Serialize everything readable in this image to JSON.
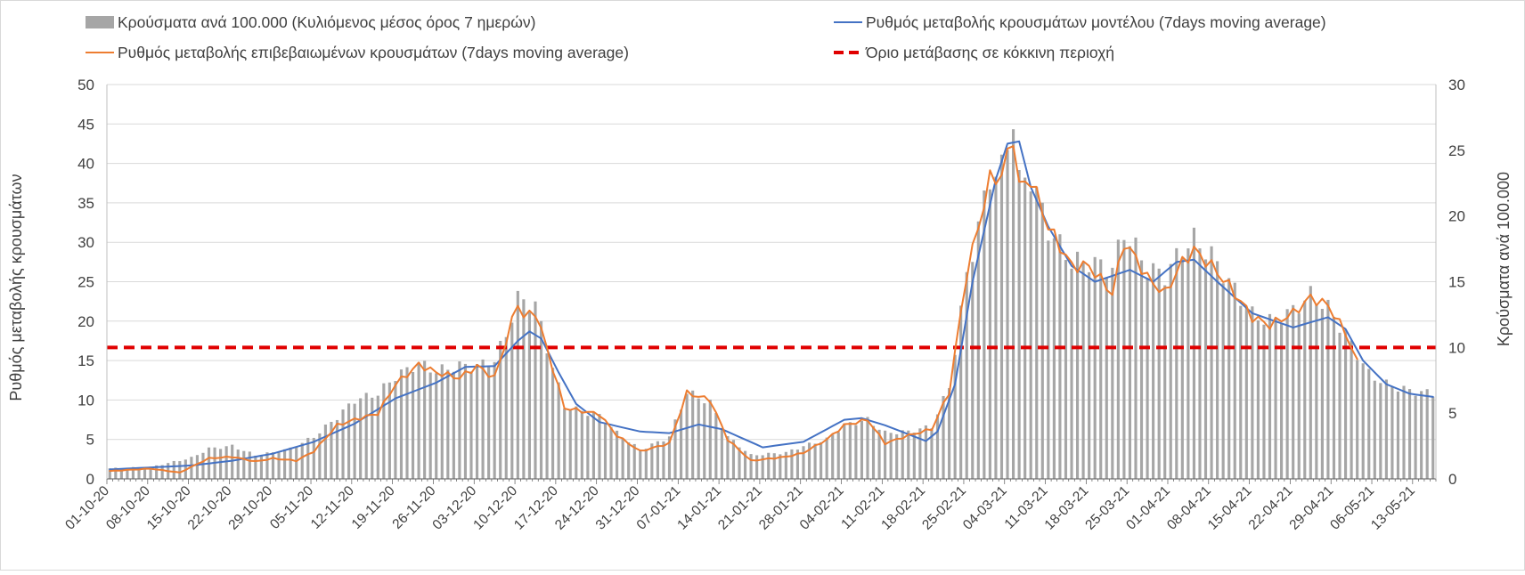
{
  "chart_data": {
    "type": "bar",
    "legend": [
      {
        "key": "cases",
        "label": "Κρούσματα ανά 100.000 (Κυλιόμενος μέσος όρος 7 ημερών)",
        "color": "#a6a6a6",
        "marker": "bar"
      },
      {
        "key": "model",
        "label": "Ρυθμός μεταβολής κρουσμάτων μοντέλου (7days moving average)",
        "color": "#4472c4",
        "marker": "line"
      },
      {
        "key": "confirmed",
        "label": "Ρυθμός μεταβολής επιβεβαιωμένων κρουσμάτων (7days moving average)",
        "color": "#ed7d31",
        "marker": "line"
      },
      {
        "key": "threshold",
        "label": "Όριο μετάβασης σε κόκκινη περιοχή",
        "color": "#e00000",
        "marker": "dash"
      }
    ],
    "left_axis": {
      "label": "Ρυθμός μεταβολής κρουσμάτων",
      "min": 0,
      "max": 50,
      "step": 5,
      "ticks": [
        "0",
        "5",
        "10",
        "15",
        "20",
        "25",
        "30",
        "35",
        "40",
        "45",
        "50"
      ]
    },
    "right_axis": {
      "label": "Κρούσματα ανά 100.000",
      "min": 0,
      "max": 30,
      "step": 5,
      "ticks": [
        "0",
        "5",
        "10",
        "15",
        "20",
        "25",
        "30"
      ]
    },
    "x_tick_labels": [
      "01-10-20",
      "08-10-20",
      "15-10-20",
      "22-10-20",
      "29-10-20",
      "05-11-20",
      "12-11-20",
      "19-11-20",
      "26-11-20",
      "03-12-20",
      "10-12-20",
      "17-12-20",
      "24-12-20",
      "31-12-20",
      "07-01-21",
      "14-01-21",
      "21-01-21",
      "28-01-21",
      "04-02-21",
      "11-02-21",
      "18-02-21",
      "25-02-21",
      "04-03-21",
      "11-03-21",
      "18-03-21",
      "25-03-21",
      "01-04-21",
      "08-04-21",
      "15-04-21",
      "22-04-21",
      "29-04-21",
      "06-05-21",
      "13-05-21"
    ],
    "x_start": "2020-10-01",
    "x_end": "2021-05-16",
    "gridlines": true,
    "legend_position": "top",
    "threshold_right_axis": 10,
    "cases_anchors": [
      [
        "2020-10-01",
        0.8
      ],
      [
        "2020-10-08",
        0.9
      ],
      [
        "2020-10-15",
        1.6
      ],
      [
        "2020-10-18",
        2.3
      ],
      [
        "2020-10-22",
        2.5
      ],
      [
        "2020-10-26",
        1.8
      ],
      [
        "2020-10-29",
        2.0
      ],
      [
        "2020-11-01",
        2.3
      ],
      [
        "2020-11-05",
        3.2
      ],
      [
        "2020-11-09",
        4.7
      ],
      [
        "2020-11-12",
        6.0
      ],
      [
        "2020-11-16",
        6.5
      ],
      [
        "2020-11-19",
        7.8
      ],
      [
        "2020-11-23",
        8.8
      ],
      [
        "2020-11-26",
        8.2
      ],
      [
        "2020-11-30",
        8.6
      ],
      [
        "2020-12-03",
        8.6
      ],
      [
        "2020-12-06",
        9.0
      ],
      [
        "2020-12-08",
        11.0
      ],
      [
        "2020-12-10",
        13.7
      ],
      [
        "2020-12-13",
        13.2
      ],
      [
        "2020-12-15",
        10.0
      ],
      [
        "2020-12-18",
        5.5
      ],
      [
        "2020-12-24",
        4.8
      ],
      [
        "2020-12-27",
        3.5
      ],
      [
        "2020-12-31",
        2.2
      ],
      [
        "2021-01-05",
        3.2
      ],
      [
        "2021-01-08",
        6.6
      ],
      [
        "2021-01-12",
        5.8
      ],
      [
        "2021-01-15",
        3.2
      ],
      [
        "2021-01-19",
        1.8
      ],
      [
        "2021-01-25",
        2.0
      ],
      [
        "2021-01-28",
        2.5
      ],
      [
        "2021-02-01",
        3.0
      ],
      [
        "2021-02-04",
        4.1
      ],
      [
        "2021-02-08",
        4.5
      ],
      [
        "2021-02-11",
        3.5
      ],
      [
        "2021-02-15",
        3.6
      ],
      [
        "2021-02-19",
        4.0
      ],
      [
        "2021-02-22",
        7.0
      ],
      [
        "2021-02-25",
        15.5
      ],
      [
        "2021-03-01",
        23.0
      ],
      [
        "2021-03-03",
        23.5
      ],
      [
        "2021-03-05",
        27.6
      ],
      [
        "2021-03-06",
        22.5
      ],
      [
        "2021-03-08",
        23.0
      ],
      [
        "2021-03-11",
        19.0
      ],
      [
        "2021-03-15",
        16.5
      ],
      [
        "2021-03-18",
        16.5
      ],
      [
        "2021-03-22",
        16.0
      ],
      [
        "2021-03-24",
        18.8
      ],
      [
        "2021-03-26",
        17.5
      ],
      [
        "2021-03-28",
        16.0
      ],
      [
        "2021-03-31",
        15.5
      ],
      [
        "2021-04-03",
        17.5
      ],
      [
        "2021-04-05",
        18.2
      ],
      [
        "2021-04-08",
        17.0
      ],
      [
        "2021-04-11",
        15.0
      ],
      [
        "2021-04-15",
        12.5
      ],
      [
        "2021-04-18",
        12.0
      ],
      [
        "2021-04-22",
        12.8
      ],
      [
        "2021-04-25",
        14.0
      ],
      [
        "2021-04-28",
        13.0
      ],
      [
        "2021-05-01",
        11.0
      ],
      [
        "2021-05-05",
        8.0
      ],
      [
        "2021-05-08",
        7.2
      ],
      [
        "2021-05-12",
        6.7
      ],
      [
        "2021-05-16",
        6.5
      ]
    ],
    "model_anchors": [
      [
        "2020-10-01",
        1.2
      ],
      [
        "2020-10-15",
        1.7
      ],
      [
        "2020-10-22",
        2.3
      ],
      [
        "2020-10-29",
        3.2
      ],
      [
        "2020-11-05",
        4.7
      ],
      [
        "2020-11-12",
        7.0
      ],
      [
        "2020-11-19",
        10.2
      ],
      [
        "2020-11-26",
        12.2
      ],
      [
        "2020-12-01",
        14.2
      ],
      [
        "2020-12-06",
        14.3
      ],
      [
        "2020-12-10",
        17.5
      ],
      [
        "2020-12-12",
        18.7
      ],
      [
        "2020-12-14",
        17.8
      ],
      [
        "2020-12-17",
        13.5
      ],
      [
        "2020-12-20",
        9.5
      ],
      [
        "2020-12-24",
        7.2
      ],
      [
        "2020-12-31",
        6.0
      ],
      [
        "2021-01-05",
        5.8
      ],
      [
        "2021-01-10",
        6.9
      ],
      [
        "2021-01-14",
        6.3
      ],
      [
        "2021-01-21",
        4.0
      ],
      [
        "2021-01-28",
        4.7
      ],
      [
        "2021-02-04",
        7.5
      ],
      [
        "2021-02-07",
        7.7
      ],
      [
        "2021-02-11",
        6.8
      ],
      [
        "2021-02-18",
        4.8
      ],
      [
        "2021-02-20",
        6.0
      ],
      [
        "2021-02-23",
        12.0
      ],
      [
        "2021-02-26",
        25.0
      ],
      [
        "2021-03-02",
        38.0
      ],
      [
        "2021-03-04",
        42.5
      ],
      [
        "2021-03-06",
        42.8
      ],
      [
        "2021-03-08",
        37.0
      ],
      [
        "2021-03-11",
        32.0
      ],
      [
        "2021-03-15",
        27.0
      ],
      [
        "2021-03-19",
        25.0
      ],
      [
        "2021-03-25",
        26.5
      ],
      [
        "2021-03-29",
        25.0
      ],
      [
        "2021-04-02",
        27.5
      ],
      [
        "2021-04-05",
        27.8
      ],
      [
        "2021-04-09",
        25.0
      ],
      [
        "2021-04-15",
        21.0
      ],
      [
        "2021-04-22",
        19.2
      ],
      [
        "2021-04-28",
        20.5
      ],
      [
        "2021-05-01",
        19.0
      ],
      [
        "2021-05-04",
        15.0
      ],
      [
        "2021-05-08",
        12.0
      ],
      [
        "2021-05-12",
        10.8
      ],
      [
        "2021-05-16",
        10.4
      ]
    ],
    "confirmed_anchors": [
      [
        "2020-10-01",
        1.0
      ],
      [
        "2020-10-08",
        1.3
      ],
      [
        "2020-10-13",
        0.8
      ],
      [
        "2020-10-18",
        2.6
      ],
      [
        "2020-10-22",
        2.8
      ],
      [
        "2020-10-26",
        2.2
      ],
      [
        "2020-10-29",
        2.6
      ],
      [
        "2020-11-02",
        2.3
      ],
      [
        "2020-11-05",
        3.5
      ],
      [
        "2020-11-09",
        6.8
      ],
      [
        "2020-11-12",
        7.5
      ],
      [
        "2020-11-16",
        8.3
      ],
      [
        "2020-11-19",
        12.0
      ],
      [
        "2020-11-23",
        14.5
      ],
      [
        "2020-11-26",
        13.5
      ],
      [
        "2020-11-30",
        12.8
      ],
      [
        "2020-12-03",
        14.3
      ],
      [
        "2020-12-06",
        12.8
      ],
      [
        "2020-12-08",
        17.5
      ],
      [
        "2020-12-10",
        22.4
      ],
      [
        "2020-12-11",
        20.5
      ],
      [
        "2020-12-13",
        21.2
      ],
      [
        "2020-12-15",
        16.5
      ],
      [
        "2020-12-18",
        9.0
      ],
      [
        "2020-12-24",
        8.2
      ],
      [
        "2020-12-27",
        5.5
      ],
      [
        "2020-12-31",
        3.5
      ],
      [
        "2021-01-05",
        4.5
      ],
      [
        "2021-01-08",
        10.9
      ],
      [
        "2021-01-12",
        10.0
      ],
      [
        "2021-01-15",
        5.0
      ],
      [
        "2021-01-19",
        2.3
      ],
      [
        "2021-01-25",
        2.8
      ],
      [
        "2021-01-28",
        3.3
      ],
      [
        "2021-02-01",
        5.0
      ],
      [
        "2021-02-04",
        6.8
      ],
      [
        "2021-02-08",
        7.5
      ],
      [
        "2021-02-11",
        4.5
      ],
      [
        "2021-02-15",
        5.5
      ],
      [
        "2021-02-19",
        6.3
      ],
      [
        "2021-02-22",
        11.0
      ],
      [
        "2021-02-25",
        26.0
      ],
      [
        "2021-03-01",
        38.0
      ],
      [
        "2021-03-03",
        38.5
      ],
      [
        "2021-03-05",
        43.5
      ],
      [
        "2021-03-06",
        37.0
      ],
      [
        "2021-03-08",
        38.0
      ],
      [
        "2021-03-11",
        32.0
      ],
      [
        "2021-03-15",
        27.0
      ],
      [
        "2021-03-18",
        27.0
      ],
      [
        "2021-03-22",
        23.5
      ],
      [
        "2021-03-24",
        30.0
      ],
      [
        "2021-03-26",
        28.0
      ],
      [
        "2021-03-28",
        25.5
      ],
      [
        "2021-03-31",
        23.5
      ],
      [
        "2021-04-03",
        27.5
      ],
      [
        "2021-04-05",
        29.0
      ],
      [
        "2021-04-08",
        27.0
      ],
      [
        "2021-04-11",
        24.5
      ],
      [
        "2021-04-15",
        20.5
      ],
      [
        "2021-04-18",
        19.5
      ],
      [
        "2021-04-22",
        21.0
      ],
      [
        "2021-04-25",
        23.0
      ],
      [
        "2021-04-28",
        22.0
      ],
      [
        "2021-05-01",
        18.5
      ],
      [
        "2021-05-03",
        14.8
      ]
    ]
  }
}
